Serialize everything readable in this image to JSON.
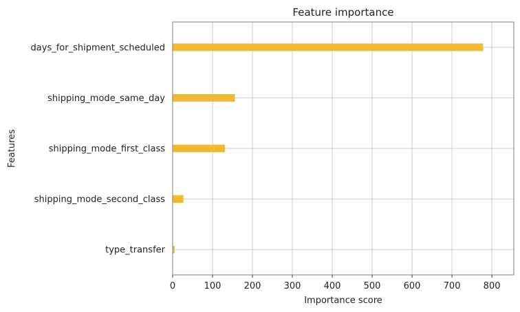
{
  "chart_data": {
    "type": "bar",
    "orientation": "horizontal",
    "title": "Feature importance",
    "xlabel": "Importance score",
    "ylabel": "Features",
    "categories": [
      "days_for_shipment_scheduled",
      "shipping_mode_same_day",
      "shipping_mode_first_class",
      "shipping_mode_second_class",
      "type_transfer"
    ],
    "values": [
      778,
      156,
      131,
      27,
      5
    ],
    "xlim": [
      0,
      855
    ],
    "xticks": [
      0,
      100,
      200,
      300,
      400,
      500,
      600,
      700,
      800
    ],
    "grid": true,
    "bar_color": "#f0ba2f",
    "grid_color": "#cccccc",
    "frame_color": "#808080"
  }
}
